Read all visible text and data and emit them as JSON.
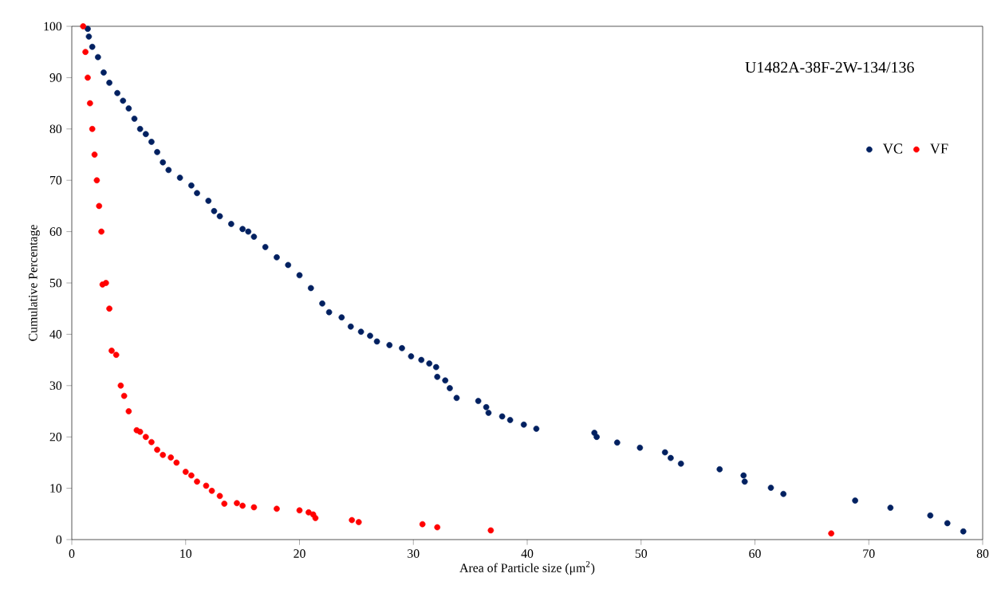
{
  "chart_data": {
    "type": "scatter",
    "xlabel": "Area of Particle size (μm$^{2}$)",
    "ylabel": "Cumulative Percentage",
    "annotations": [
      "U1482A-38F-2W-134/136"
    ],
    "xlim": [
      0,
      80
    ],
    "ylim": [
      0,
      100
    ],
    "xticks": [
      0,
      10,
      20,
      30,
      40,
      50,
      60,
      70,
      80
    ],
    "yticks": [
      0,
      10,
      20,
      30,
      40,
      50,
      60,
      70,
      80,
      90,
      100
    ],
    "grid": false,
    "legend": "right",
    "marker": "circle",
    "series": [
      {
        "name": "VC",
        "color": "#002060",
        "x": [
          1.4,
          1.5,
          1.8,
          2.3,
          2.8,
          3.3,
          4,
          4.5,
          5,
          5.5,
          6,
          6.5,
          7,
          7.5,
          8,
          8.5,
          9.5,
          10.5,
          11,
          12,
          12.5,
          13,
          14,
          15,
          15.5,
          16,
          17,
          18,
          19,
          20,
          21,
          22,
          22.6,
          23.7,
          24.5,
          25.4,
          26.2,
          26.8,
          27.9,
          29,
          29.8,
          30.7,
          31.4,
          32,
          32.1,
          32.8,
          33.2,
          33.8,
          35.7,
          36.4,
          36.6,
          37.8,
          38.5,
          39.7,
          40.8,
          45.9,
          46.1,
          47.9,
          49.9,
          52.1,
          52.6,
          53.5,
          56.9,
          59,
          59.1,
          61.4,
          62.5,
          68.8,
          71.9,
          75.4,
          76.9,
          78.3
        ],
        "values": [
          99.5,
          98,
          96,
          94,
          91,
          89,
          87,
          85.5,
          84,
          82,
          80,
          79,
          77.5,
          75.5,
          73.5,
          72,
          70.5,
          69,
          67.5,
          66,
          64,
          63,
          61.5,
          60.5,
          60,
          59,
          57,
          55,
          53.5,
          51.5,
          49,
          46,
          44.3,
          43.3,
          41.5,
          40.5,
          39.7,
          38.6,
          37.9,
          37.3,
          35.7,
          35,
          34.3,
          33.6,
          31.7,
          31,
          29.5,
          27.6,
          27,
          25.8,
          24.7,
          24,
          23.3,
          22.4,
          21.6,
          20.8,
          20,
          18.9,
          17.9,
          17,
          15.9,
          14.8,
          13.7,
          12.5,
          11.3,
          10.1,
          8.9,
          7.6,
          6.2,
          4.7,
          3.2,
          1.6
        ]
      },
      {
        "name": "VF",
        "color": "#ff0000",
        "x": [
          1,
          1.2,
          1.4,
          1.6,
          1.8,
          2,
          2.2,
          2.4,
          2.6,
          2.7,
          3,
          3.3,
          3.5,
          3.9,
          4.3,
          4.6,
          5,
          5.7,
          6,
          6.5,
          7,
          7.5,
          8,
          8.7,
          9.2,
          10,
          10.5,
          11,
          11.8,
          12.3,
          13,
          13.4,
          14.5,
          15,
          16,
          18,
          20,
          20.8,
          21.2,
          21.4,
          24.6,
          25.2,
          30.8,
          32.1,
          36.8,
          66.7
        ],
        "values": [
          100,
          95,
          90,
          85,
          80,
          75,
          70,
          65,
          60,
          49.7,
          50,
          45,
          36.8,
          36,
          30,
          28,
          25,
          21.3,
          21,
          20,
          19,
          17.5,
          16.5,
          16,
          15,
          13.2,
          12.5,
          11.3,
          10.5,
          9.5,
          8.5,
          7,
          7.1,
          6.6,
          6.3,
          6,
          5.7,
          5.3,
          4.9,
          4.2,
          3.8,
          3.4,
          3,
          2.4,
          1.8,
          1.2
        ]
      }
    ]
  }
}
